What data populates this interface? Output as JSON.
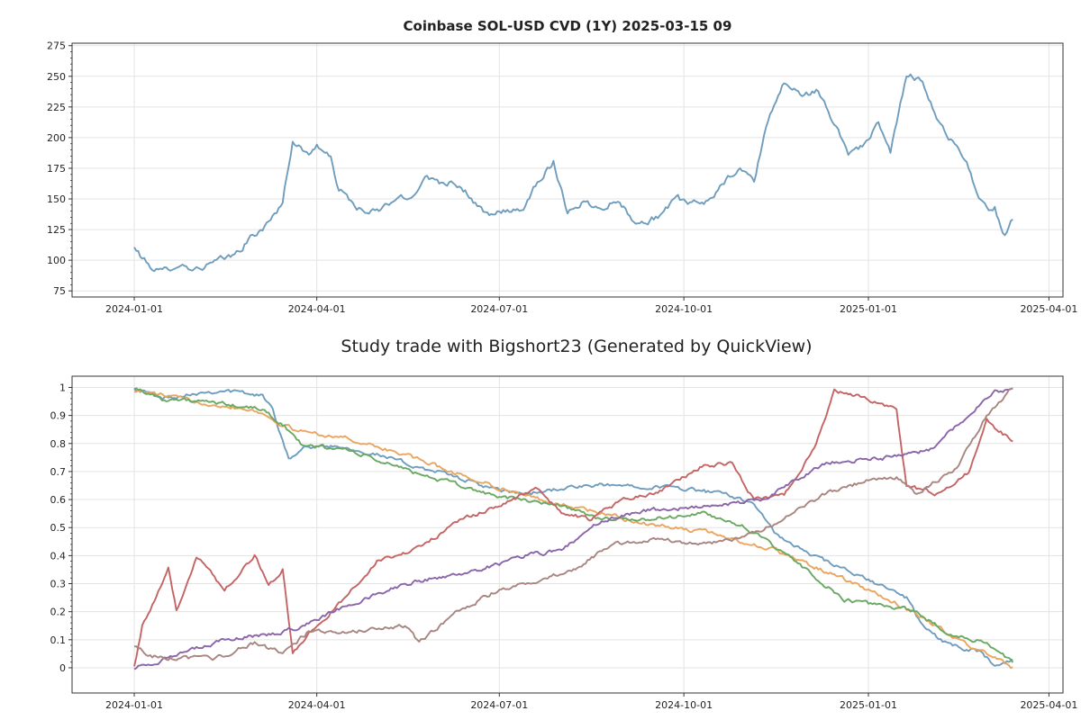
{
  "chart_data": [
    {
      "type": "line",
      "title": "Coinbase SOL-USD CVD (1Y) 2025-03-15 09",
      "xlabel": "",
      "ylabel": "",
      "x_start": "2024-01-01",
      "x_end": "2025-03-14",
      "xlim": [
        "2023-12-01",
        "2025-04-08"
      ],
      "ylim": [
        70,
        277
      ],
      "yticks": [
        75,
        100,
        125,
        150,
        175,
        200,
        225,
        250,
        275
      ],
      "xticks": [
        "2024-01-01",
        "2024-04-01",
        "2024-07-01",
        "2024-10-01",
        "2025-01-01",
        "2025-04-01"
      ],
      "grid": true,
      "colors": {
        "series": "#6f9dbd"
      },
      "series": [
        {
          "name": "",
          "color": "#6f9dbd",
          "anchors": [
            [
              "2024-01-01",
              110
            ],
            [
              "2024-01-08",
              96
            ],
            [
              "2024-01-15",
              90
            ],
            [
              "2024-01-22",
              97
            ],
            [
              "2024-02-01",
              93
            ],
            [
              "2024-02-10",
              98
            ],
            [
              "2024-02-20",
              104
            ],
            [
              "2024-02-28",
              118
            ],
            [
              "2024-03-08",
              130
            ],
            [
              "2024-03-15",
              148
            ],
            [
              "2024-03-20",
              198
            ],
            [
              "2024-03-28",
              185
            ],
            [
              "2024-04-01",
              195
            ],
            [
              "2024-04-08",
              182
            ],
            [
              "2024-04-12",
              158
            ],
            [
              "2024-04-18",
              148
            ],
            [
              "2024-04-25",
              138
            ],
            [
              "2024-05-02",
              140
            ],
            [
              "2024-05-10",
              150
            ],
            [
              "2024-05-18",
              150
            ],
            [
              "2024-05-25",
              170
            ],
            [
              "2024-06-01",
              163
            ],
            [
              "2024-06-08",
              165
            ],
            [
              "2024-06-15",
              155
            ],
            [
              "2024-06-22",
              140
            ],
            [
              "2024-06-28",
              135
            ],
            [
              "2024-07-05",
              142
            ],
            [
              "2024-07-12",
              138
            ],
            [
              "2024-07-20",
              165
            ],
            [
              "2024-07-28",
              180
            ],
            [
              "2024-08-04",
              140
            ],
            [
              "2024-08-12",
              148
            ],
            [
              "2024-08-20",
              142
            ],
            [
              "2024-08-28",
              150
            ],
            [
              "2024-09-05",
              135
            ],
            [
              "2024-09-12",
              130
            ],
            [
              "2024-09-20",
              138
            ],
            [
              "2024-09-28",
              150
            ],
            [
              "2024-10-05",
              145
            ],
            [
              "2024-10-12",
              148
            ],
            [
              "2024-10-20",
              160
            ],
            [
              "2024-10-28",
              175
            ],
            [
              "2024-11-05",
              165
            ],
            [
              "2024-11-12",
              215
            ],
            [
              "2024-11-20",
              245
            ],
            [
              "2024-11-28",
              235
            ],
            [
              "2024-12-06",
              238
            ],
            [
              "2024-12-14",
              215
            ],
            [
              "2024-12-22",
              188
            ],
            [
              "2024-12-30",
              195
            ],
            [
              "2025-01-06",
              210
            ],
            [
              "2025-01-12",
              188
            ],
            [
              "2025-01-20",
              250
            ],
            [
              "2025-01-28",
              248
            ],
            [
              "2025-02-03",
              220
            ],
            [
              "2025-02-10",
              200
            ],
            [
              "2025-02-18",
              185
            ],
            [
              "2025-02-25",
              150
            ],
            [
              "2025-03-01",
              140
            ],
            [
              "2025-03-05",
              142
            ],
            [
              "2025-03-10",
              120
            ],
            [
              "2025-03-14",
              134
            ]
          ]
        }
      ]
    },
    {
      "type": "line",
      "title": "Study trade with Bigshort23 (Generated by QuickView)",
      "xlabel": "",
      "ylabel": "",
      "x_start": "2024-01-01",
      "x_end": "2025-03-14",
      "xlim": [
        "2023-12-01",
        "2025-04-08"
      ],
      "ylim": [
        -0.09,
        1.04
      ],
      "yticks": [
        0,
        0.1,
        0.2,
        0.3,
        0.4,
        0.5,
        0.6,
        0.7,
        0.8,
        0.9,
        1
      ],
      "xticks": [
        "2024-01-01",
        "2024-04-01",
        "2024-07-01",
        "2024-10-01",
        "2025-01-01",
        "2025-04-01"
      ],
      "grid": true,
      "series": [
        {
          "name": "",
          "color": "#6f9dbd",
          "anchors": [
            [
              "2024-01-01",
              1.0
            ],
            [
              "2024-01-15",
              0.96
            ],
            [
              "2024-01-30",
              0.98
            ],
            [
              "2024-02-15",
              0.99
            ],
            [
              "2024-03-05",
              0.97
            ],
            [
              "2024-03-10",
              0.92
            ],
            [
              "2024-03-18",
              0.75
            ],
            [
              "2024-03-28",
              0.79
            ],
            [
              "2024-04-15",
              0.79
            ],
            [
              "2024-05-01",
              0.76
            ],
            [
              "2024-05-20",
              0.72
            ],
            [
              "2024-06-10",
              0.68
            ],
            [
              "2024-07-01",
              0.63
            ],
            [
              "2024-07-15",
              0.62
            ],
            [
              "2024-08-01",
              0.64
            ],
            [
              "2024-08-20",
              0.65
            ],
            [
              "2024-09-10",
              0.65
            ],
            [
              "2024-10-01",
              0.64
            ],
            [
              "2024-10-20",
              0.62
            ],
            [
              "2024-11-05",
              0.59
            ],
            [
              "2024-11-15",
              0.48
            ],
            [
              "2024-12-01",
              0.41
            ],
            [
              "2024-12-20",
              0.35
            ],
            [
              "2025-01-05",
              0.3
            ],
            [
              "2025-01-20",
              0.25
            ],
            [
              "2025-01-28",
              0.15
            ],
            [
              "2025-02-10",
              0.08
            ],
            [
              "2025-02-25",
              0.06
            ],
            [
              "2025-03-05",
              0.01
            ],
            [
              "2025-03-14",
              0.03
            ]
          ]
        },
        {
          "name": "",
          "color": "#eaa55e",
          "anchors": [
            [
              "2024-01-01",
              0.99
            ],
            [
              "2024-02-01",
              0.95
            ],
            [
              "2024-03-01",
              0.92
            ],
            [
              "2024-03-20",
              0.85
            ],
            [
              "2024-04-15",
              0.82
            ],
            [
              "2024-05-15",
              0.76
            ],
            [
              "2024-06-15",
              0.68
            ],
            [
              "2024-07-15",
              0.61
            ],
            [
              "2024-08-15",
              0.56
            ],
            [
              "2024-09-15",
              0.51
            ],
            [
              "2024-10-15",
              0.48
            ],
            [
              "2024-11-15",
              0.42
            ],
            [
              "2024-12-15",
              0.33
            ],
            [
              "2025-01-15",
              0.23
            ],
            [
              "2025-02-15",
              0.1
            ],
            [
              "2025-03-14",
              0.0
            ]
          ]
        },
        {
          "name": "",
          "color": "#6aa963",
          "anchors": [
            [
              "2024-01-01",
              1.0
            ],
            [
              "2024-01-15",
              0.96
            ],
            [
              "2024-02-01",
              0.95
            ],
            [
              "2024-02-15",
              0.94
            ],
            [
              "2024-03-05",
              0.92
            ],
            [
              "2024-03-15",
              0.87
            ],
            [
              "2024-03-25",
              0.79
            ],
            [
              "2024-04-15",
              0.78
            ],
            [
              "2024-05-01",
              0.74
            ],
            [
              "2024-06-01",
              0.67
            ],
            [
              "2024-07-01",
              0.61
            ],
            [
              "2024-08-01",
              0.58
            ],
            [
              "2024-08-20",
              0.53
            ],
            [
              "2024-09-15",
              0.53
            ],
            [
              "2024-10-10",
              0.55
            ],
            [
              "2024-10-30",
              0.51
            ],
            [
              "2024-11-15",
              0.43
            ],
            [
              "2024-12-01",
              0.35
            ],
            [
              "2024-12-20",
              0.24
            ],
            [
              "2025-01-10",
              0.22
            ],
            [
              "2025-01-25",
              0.2
            ],
            [
              "2025-02-10",
              0.12
            ],
            [
              "2025-03-01",
              0.09
            ],
            [
              "2025-03-14",
              0.02
            ]
          ]
        },
        {
          "name": "",
          "color": "#c46464",
          "anchors": [
            [
              "2024-01-01",
              0.01
            ],
            [
              "2024-01-05",
              0.15
            ],
            [
              "2024-01-12",
              0.25
            ],
            [
              "2024-01-18",
              0.35
            ],
            [
              "2024-01-22",
              0.2
            ],
            [
              "2024-02-01",
              0.4
            ],
            [
              "2024-02-15",
              0.28
            ],
            [
              "2024-03-01",
              0.4
            ],
            [
              "2024-03-08",
              0.3
            ],
            [
              "2024-03-15",
              0.35
            ],
            [
              "2024-03-20",
              0.05
            ],
            [
              "2024-03-28",
              0.12
            ],
            [
              "2024-04-15",
              0.25
            ],
            [
              "2024-05-01",
              0.38
            ],
            [
              "2024-05-20",
              0.42
            ],
            [
              "2024-06-10",
              0.52
            ],
            [
              "2024-07-01",
              0.58
            ],
            [
              "2024-07-20",
              0.64
            ],
            [
              "2024-08-01",
              0.55
            ],
            [
              "2024-08-15",
              0.53
            ],
            [
              "2024-09-01",
              0.6
            ],
            [
              "2024-09-20",
              0.63
            ],
            [
              "2024-10-10",
              0.72
            ],
            [
              "2024-10-25",
              0.73
            ],
            [
              "2024-11-05",
              0.6
            ],
            [
              "2024-11-20",
              0.62
            ],
            [
              "2024-12-05",
              0.78
            ],
            [
              "2024-12-15",
              0.99
            ],
            [
              "2025-01-01",
              0.96
            ],
            [
              "2025-01-15",
              0.92
            ],
            [
              "2025-01-20",
              0.65
            ],
            [
              "2025-02-05",
              0.62
            ],
            [
              "2025-02-20",
              0.7
            ],
            [
              "2025-03-01",
              0.88
            ],
            [
              "2025-03-08",
              0.84
            ],
            [
              "2025-03-14",
              0.81
            ]
          ]
        },
        {
          "name": "",
          "color": "#8a65a8",
          "anchors": [
            [
              "2024-01-01",
              0.0
            ],
            [
              "2024-01-25",
              0.05
            ],
            [
              "2024-02-15",
              0.1
            ],
            [
              "2024-03-10",
              0.12
            ],
            [
              "2024-03-25",
              0.15
            ],
            [
              "2024-04-15",
              0.22
            ],
            [
              "2024-05-15",
              0.3
            ],
            [
              "2024-06-15",
              0.34
            ],
            [
              "2024-07-15",
              0.4
            ],
            [
              "2024-08-01",
              0.42
            ],
            [
              "2024-08-20",
              0.52
            ],
            [
              "2024-09-10",
              0.56
            ],
            [
              "2024-10-01",
              0.57
            ],
            [
              "2024-10-20",
              0.58
            ],
            [
              "2024-11-10",
              0.6
            ],
            [
              "2024-12-10",
              0.73
            ],
            [
              "2025-01-10",
              0.75
            ],
            [
              "2025-02-01",
              0.78
            ],
            [
              "2025-02-20",
              0.9
            ],
            [
              "2025-03-05",
              0.99
            ],
            [
              "2025-03-14",
              0.99
            ]
          ]
        },
        {
          "name": "",
          "color": "#a88580",
          "anchors": [
            [
              "2024-01-01",
              0.08
            ],
            [
              "2024-01-10",
              0.04
            ],
            [
              "2024-02-10",
              0.03
            ],
            [
              "2024-03-01",
              0.09
            ],
            [
              "2024-03-15",
              0.05
            ],
            [
              "2024-03-28",
              0.13
            ],
            [
              "2024-04-20",
              0.13
            ],
            [
              "2024-05-15",
              0.15
            ],
            [
              "2024-05-22",
              0.09
            ],
            [
              "2024-06-10",
              0.2
            ],
            [
              "2024-07-01",
              0.28
            ],
            [
              "2024-07-20",
              0.31
            ],
            [
              "2024-08-10",
              0.36
            ],
            [
              "2024-08-25",
              0.44
            ],
            [
              "2024-09-15",
              0.46
            ],
            [
              "2024-10-10",
              0.44
            ],
            [
              "2024-11-01",
              0.47
            ],
            [
              "2024-11-20",
              0.53
            ],
            [
              "2024-12-10",
              0.62
            ],
            [
              "2025-01-01",
              0.67
            ],
            [
              "2025-01-15",
              0.68
            ],
            [
              "2025-01-25",
              0.62
            ],
            [
              "2025-02-15",
              0.72
            ],
            [
              "2025-03-01",
              0.9
            ],
            [
              "2025-03-14",
              1.0
            ]
          ]
        }
      ]
    }
  ]
}
